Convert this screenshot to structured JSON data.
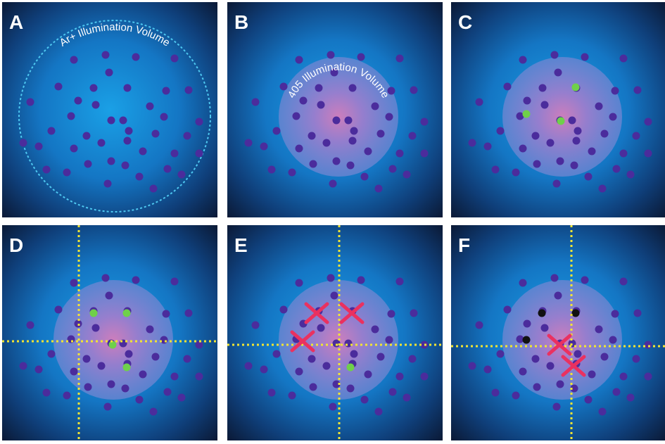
{
  "panels": [
    {
      "label": "A",
      "annotation": "Ar+ Illumination Volume"
    },
    {
      "label": "B",
      "annotation": "405 Illumination Volume"
    },
    {
      "label": "C"
    },
    {
      "label": "D"
    },
    {
      "label": "E"
    },
    {
      "label": "F"
    }
  ]
}
